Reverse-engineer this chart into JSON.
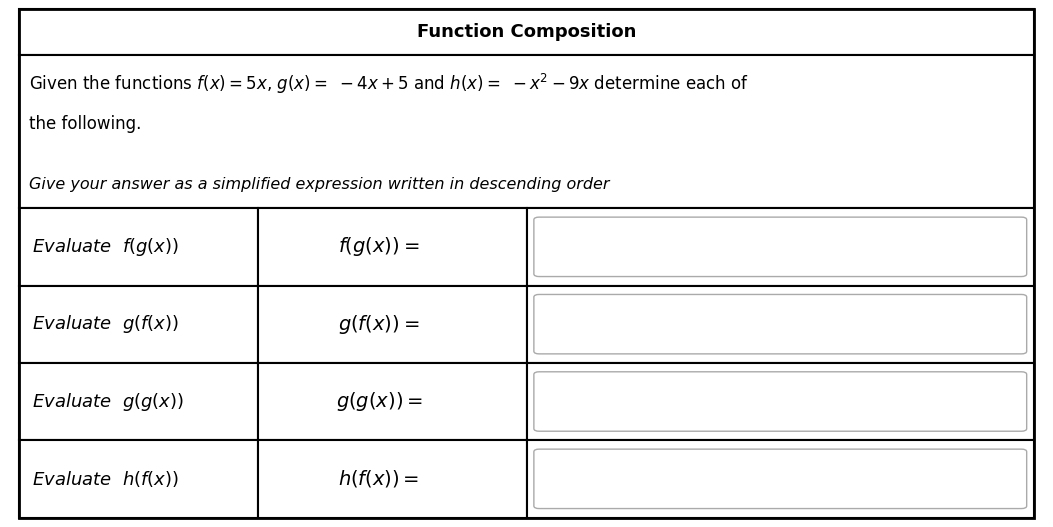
{
  "title": "Function Composition",
  "bg_color": "#ffffff",
  "border_color": "#000000",
  "answer_box_color": "#ffffff",
  "answer_box_edge": "#aaaaaa",
  "title_fontsize": 13,
  "body_fontsize": 12,
  "math_fontsize": 14,
  "label_fontsize": 13,
  "rows": [
    {
      "left_label": "Evaluate  $f(g(x))$",
      "middle_expr": "$f(g(x)) = $"
    },
    {
      "left_label": "Evaluate  $g(f(x))$",
      "middle_expr": "$g(f(x)) = $"
    },
    {
      "left_label": "Evaluate  $g(g(x))$",
      "middle_expr": "$g(g(x)) = $"
    },
    {
      "left_label": "Evaluate  $h(f(x))$",
      "middle_expr": "$h(f(x)) = $"
    }
  ]
}
